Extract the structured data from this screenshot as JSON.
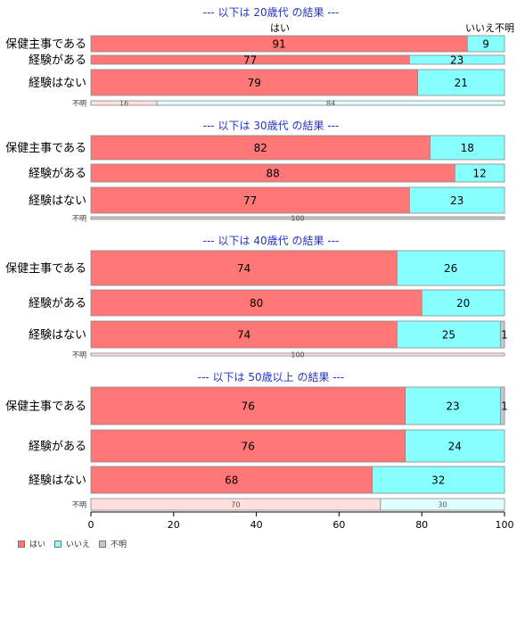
{
  "colors": {
    "yes": "#ff7777",
    "no": "#88ffff",
    "unknown": "#c8c8c8",
    "yes_light": "#ffdede",
    "no_light": "#e0ffff",
    "title": "#2233cc"
  },
  "chart_data": {
    "type": "bar",
    "orientation": "horizontal",
    "stacked": true,
    "xlim": [
      0,
      100
    ],
    "x_ticks": [
      "0",
      "20",
      "40",
      "60",
      "80",
      "100"
    ],
    "header_labels": {
      "yes": "はい",
      "no": "いいえ",
      "unknown": "不明"
    },
    "legend": [
      {
        "key": "yes",
        "label": "はい"
      },
      {
        "key": "no",
        "label": "いいえ"
      },
      {
        "key": "unknown",
        "label": "不明"
      }
    ],
    "panels": [
      {
        "title": "--- 以下は 20歳代 の結果 ---",
        "show_header": true,
        "rows": [
          {
            "label": "保健主事である",
            "yes": 91,
            "no": 9,
            "unknown": 0
          },
          {
            "label": "経験がある",
            "yes": 77,
            "no": 23,
            "unknown": 0
          },
          {
            "label": "経験はない",
            "yes": 79,
            "no": 21,
            "unknown": 0
          }
        ],
        "unknown_row": {
          "label": "不明",
          "yes": 16,
          "no": 84
        }
      },
      {
        "title": "--- 以下は 30歳代 の結果 ---",
        "show_header": false,
        "rows": [
          {
            "label": "保健主事である",
            "yes": 82,
            "no": 18,
            "unknown": 0
          },
          {
            "label": "経験がある",
            "yes": 88,
            "no": 12,
            "unknown": 0
          },
          {
            "label": "経験はない",
            "yes": 77,
            "no": 23,
            "unknown": 0
          }
        ],
        "unknown_row": {
          "label": "不明",
          "yes": 0,
          "no": 0,
          "unknown": 100
        }
      },
      {
        "title": "--- 以下は 40歳代 の結果 ---",
        "show_header": false,
        "rows": [
          {
            "label": "保健主事である",
            "yes": 74,
            "no": 26,
            "unknown": 0
          },
          {
            "label": "経験がある",
            "yes": 80,
            "no": 20,
            "unknown": 0
          },
          {
            "label": "経験はない",
            "yes": 74,
            "no": 25,
            "unknown": 1
          }
        ],
        "unknown_row": {
          "label": "不明",
          "yes": 100,
          "no": 0
        }
      },
      {
        "title": "--- 以下は 50歳以上 の結果 ---",
        "show_header": false,
        "rows": [
          {
            "label": "保健主事である",
            "yes": 76,
            "no": 23,
            "unknown": 1
          },
          {
            "label": "経験がある",
            "yes": 76,
            "no": 24,
            "unknown": 0
          },
          {
            "label": "経験はない",
            "yes": 68,
            "no": 32,
            "unknown": 0
          }
        ],
        "unknown_row": {
          "label": "不明",
          "yes": 70,
          "no": 30
        }
      }
    ]
  }
}
